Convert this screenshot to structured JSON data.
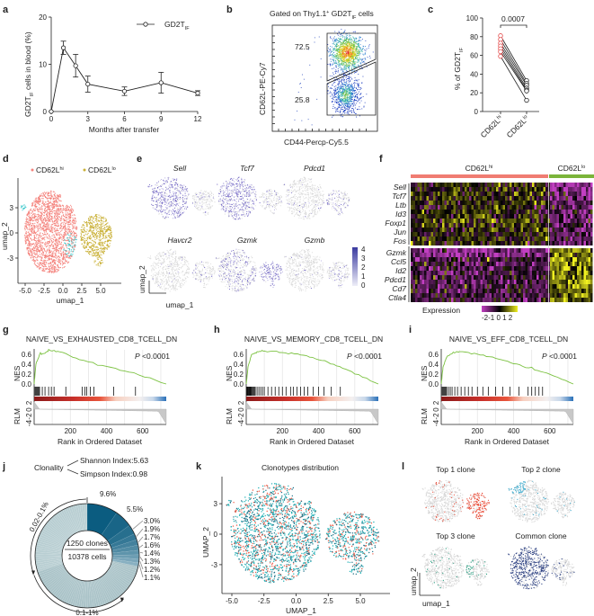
{
  "panel_labels": {
    "a": "a",
    "b": "b",
    "c": "c",
    "d": "d",
    "e": "e",
    "f": "f",
    "g": "g",
    "h": "h",
    "i": "i",
    "j": "j",
    "k": "k",
    "l": "l"
  },
  "colors": {
    "cd62l_hi": "#f4837d",
    "cd62l_lo": "#c9b036",
    "cluster_cyan": "#3cc8cc",
    "expression_high": "#5a4db0",
    "expression_low": "#d9d9d9",
    "nes_line": "#7cc242",
    "heat_low": "#c23fc2",
    "heat_mid": "#000000",
    "heat_high": "#f0f020",
    "donut_dark": "#0b5c80",
    "donut_light": "#b5cdd2",
    "top1": "#e8432e",
    "top2": "#3aa9cc",
    "top3": "#1a9a7a",
    "common": "#2b3f80"
  },
  "panel_a": {
    "legend": {
      "main": "GD2T",
      "sub": "IF"
    },
    "ylabel": {
      "main": "GD2T",
      "sub": "IF",
      "rest": " cells in blood (%)"
    },
    "xlabel": "Months after transfer",
    "xticks": [
      "0",
      "3",
      "6",
      "9",
      "12"
    ],
    "yticks": [
      "0",
      "10",
      "20"
    ]
  },
  "panel_b": {
    "title": {
      "pre": "Gated on Thy1.1",
      "sup": "+",
      "mid": " GD2T",
      "sub": "IF",
      "post": " cells"
    },
    "gate_high": "72.5",
    "gate_low": "25.8",
    "xlabel": "CD44-Percp-Cy5.5",
    "ylabel": "CD62L-PE-Cy7"
  },
  "panel_c": {
    "pvalue": "0.0007",
    "ylabel": {
      "main": "% of GD2T",
      "sub": "IF"
    },
    "yticks": [
      "0",
      "20",
      "40",
      "60",
      "80",
      "100"
    ],
    "categories": [
      {
        "main": "CD62L",
        "sup": "hi"
      },
      {
        "main": "CD62L",
        "sup": "lo"
      }
    ]
  },
  "panel_d": {
    "legend": [
      {
        "main": "CD62L",
        "sup": "hi"
      },
      {
        "main": "CD62L",
        "sup": "lo"
      }
    ],
    "xticks": [
      "-5.0",
      "-2.5",
      "0.0",
      "2.5",
      "5.0"
    ],
    "yticks": [
      "3",
      "0",
      "-3"
    ],
    "xlabel": "umap_1",
    "ylabel": "umap_2"
  },
  "panel_e": {
    "genes": [
      "Sell",
      "Tcf7",
      "Pdcd1",
      "Havcr2",
      "Gzmk",
      "Gzmb"
    ],
    "colorbar_ticks": [
      "4",
      "3",
      "2",
      "1",
      "0"
    ],
    "xlabel": "umap_1",
    "ylabel": "umap_2"
  },
  "panel_f": {
    "groups": [
      {
        "main": "CD62L",
        "sup": "hi"
      },
      {
        "main": "CD62L",
        "sup": "lo"
      }
    ],
    "genes_up_in_hi": [
      "Sell",
      "Tcf7",
      "Ltb",
      "Id3",
      "Foxp1",
      "Jun",
      "Fos"
    ],
    "genes_up_in_lo": [
      "Gzmk",
      "Ccl5",
      "Id2",
      "Pdcd1",
      "Cd7",
      "Ctla4"
    ],
    "legend_title": "Expression",
    "legend_ticks": "-2-1 0 1 2"
  },
  "gsea": [
    {
      "title": "NAIVE_VS_EXHAUSTED_CD8_TCELL_DN",
      "p_label": "P",
      "p_value": " <0.0001"
    },
    {
      "title": "NAIVE_VS_MEMORY_CD8_TCELL_DN",
      "p_label": "P",
      "p_value": " <0.0001"
    },
    {
      "title": "NAIVE_VS_EFF_CD8_TCELL_DN",
      "p_label": "P",
      "p_value": " <0.0001"
    }
  ],
  "gsea_axes": {
    "nes_label": "NES",
    "rlm_label": "RLM",
    "xlabel": "Rank in Ordered Dataset",
    "nes_ticks": [
      "0.0",
      "0.2",
      "0.4",
      "0.6"
    ],
    "rlm_ticks": [
      "2",
      "0",
      "-2",
      "-4"
    ],
    "xticks": [
      "200",
      "400",
      "600"
    ]
  },
  "panel_j": {
    "clonality": "Clonality",
    "shannon": "Shannon Index:5.63",
    "simpson": "Simpson Index:0.98",
    "clones": "1250 clones",
    "cells": "10378 cells",
    "range_low": "0.02-0.1%",
    "range_mid": "0.1-1%",
    "slice_labels": [
      "9.6%",
      "5.5%",
      "3.0%",
      "1.9%",
      "1.7%",
      "1.6%",
      "1.4%",
      "1.3%",
      "1.2%",
      "1.1%"
    ]
  },
  "panel_k": {
    "title": "Clonotypes distribution",
    "xticks": [
      "-5.0",
      "-2.5",
      "0.0",
      "2.5",
      "5.0"
    ],
    "yticks": [
      "3",
      "0",
      "-3"
    ],
    "xlabel": "UMAP_1",
    "ylabel": "UMAP_2"
  },
  "panel_l": {
    "titles": [
      "Top 1 clone",
      "Top 2 clone",
      "Top 3 clone",
      "Common clone"
    ],
    "xlabel": "umap_1",
    "ylabel": "umap_2"
  },
  "chart_data": [
    {
      "panel": "a",
      "type": "line",
      "x": [
        0,
        1,
        2,
        3,
        6,
        9,
        12
      ],
      "y": [
        0,
        13.5,
        9.7,
        5.8,
        4.3,
        6.1,
        3.9
      ],
      "error": [
        0,
        1.4,
        2.4,
        1.7,
        0.9,
        2.2,
        0.5
      ],
      "xlim": [
        0,
        12
      ],
      "ylim": [
        0,
        20
      ],
      "legend": "top-right"
    },
    {
      "panel": "b",
      "type": "scatter",
      "description_values": {
        "upper_gate_pct": 72.5,
        "lower_gate_pct": 25.8
      }
    },
    {
      "panel": "c",
      "type": "scatter",
      "categories": [
        "CD62Lhi",
        "CD62Llo"
      ],
      "paired_values": [
        [
          81,
          33
        ],
        [
          77,
          30
        ],
        [
          73,
          28
        ],
        [
          70,
          25
        ],
        [
          67,
          23
        ],
        [
          64,
          22
        ],
        [
          59,
          12
        ]
      ],
      "ylim": [
        0,
        100
      ]
    },
    {
      "panel": "d",
      "type": "scatter",
      "xlim": [
        -6,
        7
      ],
      "ylim": [
        -5,
        5
      ],
      "legend": "top"
    },
    {
      "panel": "e",
      "type": "scatter",
      "colorbar_range": [
        0,
        4
      ]
    },
    {
      "panel": "f",
      "type": "heatmap",
      "color_range": [
        -2,
        2
      ]
    },
    {
      "panel": "g",
      "type": "line",
      "xlim": [
        0,
        730
      ],
      "ylim": [
        0,
        0.7
      ],
      "nes": [
        [
          0,
          0
        ],
        [
          10,
          0.4
        ],
        [
          30,
          0.6
        ],
        [
          60,
          0.62
        ],
        [
          80,
          0.68
        ],
        [
          140,
          0.65
        ],
        [
          250,
          0.5
        ],
        [
          400,
          0.35
        ],
        [
          550,
          0.22
        ],
        [
          730,
          0
        ]
      ],
      "hits": [
        5,
        10,
        15,
        20,
        25,
        30,
        45,
        60,
        80,
        95,
        110,
        175,
        265,
        280,
        290,
        310,
        330,
        440,
        560
      ]
    },
    {
      "panel": "h",
      "type": "line",
      "xlim": [
        0,
        730
      ],
      "ylim": [
        0,
        0.7
      ],
      "nes": [
        [
          0,
          0
        ],
        [
          10,
          0.35
        ],
        [
          30,
          0.6
        ],
        [
          60,
          0.65
        ],
        [
          100,
          0.68
        ],
        [
          200,
          0.63
        ],
        [
          300,
          0.6
        ],
        [
          400,
          0.5
        ],
        [
          500,
          0.38
        ],
        [
          600,
          0.22
        ],
        [
          730,
          0
        ]
      ],
      "hits": [
        3,
        6,
        9,
        12,
        15,
        18,
        21,
        24,
        27,
        30,
        35,
        40,
        45,
        50,
        60,
        70,
        80,
        90,
        100,
        120,
        140,
        160,
        180,
        200,
        220,
        245,
        260,
        280,
        300,
        320,
        340,
        370,
        400,
        430,
        470,
        520
      ]
    },
    {
      "panel": "i",
      "type": "line",
      "xlim": [
        0,
        730
      ],
      "ylim": [
        0,
        0.7
      ],
      "nes": [
        [
          0,
          0
        ],
        [
          10,
          0.35
        ],
        [
          30,
          0.55
        ],
        [
          60,
          0.62
        ],
        [
          100,
          0.66
        ],
        [
          200,
          0.6
        ],
        [
          300,
          0.52
        ],
        [
          400,
          0.42
        ],
        [
          500,
          0.32
        ],
        [
          600,
          0.2
        ],
        [
          730,
          0
        ]
      ],
      "hits": [
        5,
        10,
        15,
        20,
        25,
        30,
        40,
        50,
        60,
        75,
        90,
        110,
        130,
        150,
        170,
        200,
        230,
        260,
        300,
        340,
        380,
        430,
        480,
        500,
        520,
        540,
        560
      ]
    },
    {
      "panel": "j",
      "type": "pie",
      "slices_pct": [
        9.6,
        5.5,
        3.0,
        1.9,
        1.7,
        1.6,
        1.4,
        1.3,
        1.2,
        1.1
      ]
    },
    {
      "panel": "k",
      "type": "scatter",
      "xlim": [
        -5.5,
        7
      ],
      "ylim": [
        -5.5,
        5
      ]
    }
  ]
}
